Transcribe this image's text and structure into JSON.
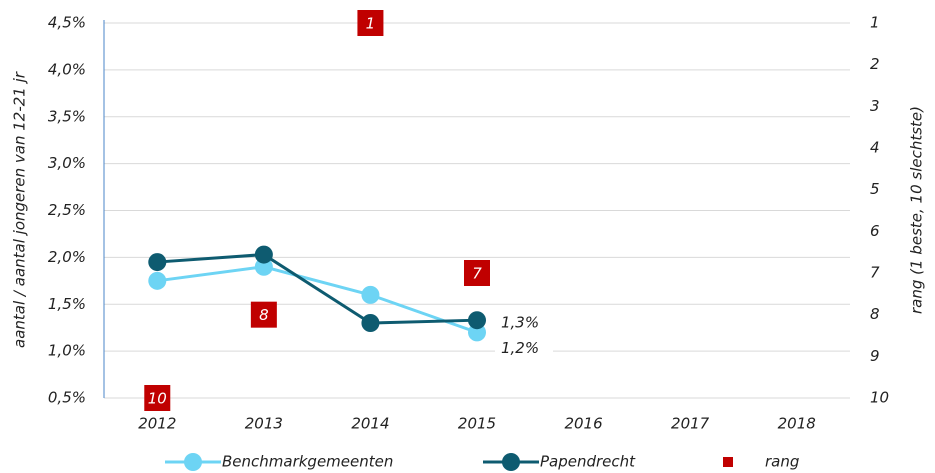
{
  "chart_data": {
    "type": "line",
    "categories": [
      "2012",
      "2013",
      "2014",
      "2015",
      "2016",
      "2017",
      "2018"
    ],
    "ylabel": "aantal / aantal jongeren van 12-21 jr",
    "y2label": "rang (1 beste, 10 slechtste)",
    "ylim": [
      0.5,
      4.5
    ],
    "yticks": [
      {
        "value": 0.5,
        "label": "0,5%"
      },
      {
        "value": 1.0,
        "label": "1,0%"
      },
      {
        "value": 1.5,
        "label": "1,5%"
      },
      {
        "value": 2.0,
        "label": "2,0%"
      },
      {
        "value": 2.5,
        "label": "2,5%"
      },
      {
        "value": 3.0,
        "label": "3,0%"
      },
      {
        "value": 3.5,
        "label": "3,5%"
      },
      {
        "value": 4.0,
        "label": "4,0%"
      },
      {
        "value": 4.5,
        "label": "4,5%"
      }
    ],
    "y2lim": [
      10,
      1
    ],
    "y2ticks": [
      1,
      2,
      3,
      4,
      5,
      6,
      7,
      8,
      9,
      10
    ],
    "grid": true,
    "legend": "bottom",
    "series": [
      {
        "name": "Benchmarkgemeenten",
        "color": "#6dd4f4",
        "values": [
          1.75,
          1.9,
          1.6,
          1.2,
          null,
          null,
          null
        ],
        "value_labels": [
          null,
          null,
          null,
          "1,2%",
          null,
          null,
          null
        ]
      },
      {
        "name": "Papendrecht",
        "color": "#0e5b70",
        "values": [
          1.95,
          2.03,
          1.3,
          1.33,
          null,
          null,
          null
        ],
        "value_labels": [
          null,
          null,
          null,
          "1,3%",
          null,
          null,
          null
        ]
      },
      {
        "name": "rang",
        "color": "#c00000",
        "axis": "y2",
        "type": "marker",
        "values": [
          10,
          8,
          1,
          7,
          null,
          null,
          null
        ]
      }
    ]
  }
}
